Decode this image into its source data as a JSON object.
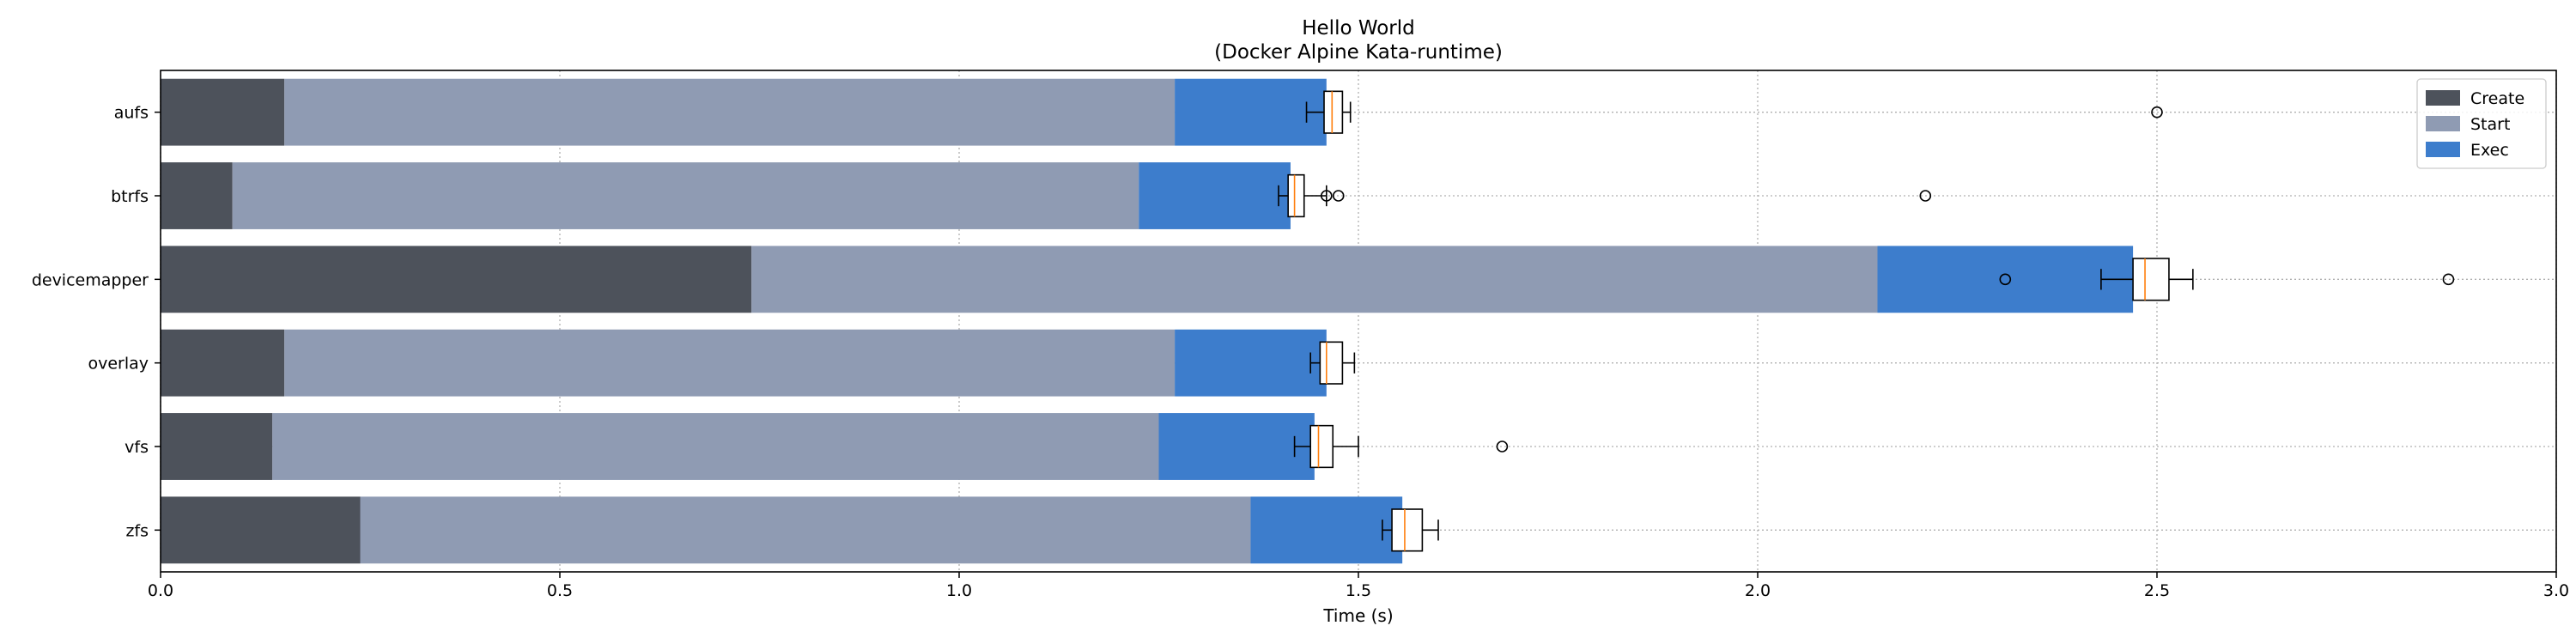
{
  "chart_data": {
    "type": "bar",
    "orientation": "horizontal",
    "stacked": true,
    "title_lines": [
      "Hello World",
      "(Docker Alpine Kata-runtime)"
    ],
    "xlabel": "Time (s)",
    "ylabel": "",
    "xlim": [
      0,
      3.0
    ],
    "xticks": [
      0.0,
      0.5,
      1.0,
      1.5,
      2.0,
      2.5,
      3.0
    ],
    "xtick_labels": [
      "0.0",
      "0.5",
      "1.0",
      "1.5",
      "2.0",
      "2.5",
      "3.0"
    ],
    "grid": true,
    "legend_position": "top-right",
    "categories": [
      "aufs",
      "btrfs",
      "devicemapper",
      "overlay",
      "vfs",
      "zfs"
    ],
    "series": [
      {
        "name": "Create",
        "color": "#4d525b",
        "values": [
          0.155,
          0.09,
          0.74,
          0.155,
          0.14,
          0.25
        ]
      },
      {
        "name": "Start",
        "color": "#8f9bb3",
        "values": [
          1.115,
          1.135,
          1.41,
          1.115,
          1.11,
          1.115
        ]
      },
      {
        "name": "Exec",
        "color": "#3d7dcc",
        "values": [
          0.19,
          0.19,
          0.32,
          0.19,
          0.195,
          0.19
        ]
      }
    ],
    "boxplots": [
      {
        "category": "aufs",
        "whisker_low": 1.435,
        "q1": 1.457,
        "median": 1.467,
        "q3": 1.48,
        "whisker_high": 1.49,
        "outliers": [
          2.5
        ]
      },
      {
        "category": "btrfs",
        "whisker_low": 1.4,
        "q1": 1.412,
        "median": 1.42,
        "q3": 1.432,
        "whisker_high": 1.46,
        "outliers": [
          1.46,
          1.475,
          2.21
        ]
      },
      {
        "category": "devicemapper",
        "whisker_low": 2.43,
        "q1": 2.47,
        "median": 2.485,
        "q3": 2.515,
        "whisker_high": 2.545,
        "outliers": [
          2.31,
          2.865
        ]
      },
      {
        "category": "overlay",
        "whisker_low": 1.44,
        "q1": 1.452,
        "median": 1.46,
        "q3": 1.48,
        "whisker_high": 1.495,
        "outliers": []
      },
      {
        "category": "vfs",
        "whisker_low": 1.42,
        "q1": 1.44,
        "median": 1.45,
        "q3": 1.468,
        "whisker_high": 1.5,
        "outliers": [
          1.68
        ]
      },
      {
        "category": "zfs",
        "whisker_low": 1.53,
        "q1": 1.542,
        "median": 1.558,
        "q3": 1.58,
        "whisker_high": 1.6,
        "outliers": []
      }
    ],
    "styles": {
      "median_color": "#ff7f0e",
      "grid_color": "#b0b0b0",
      "axis_color": "#000000"
    }
  }
}
